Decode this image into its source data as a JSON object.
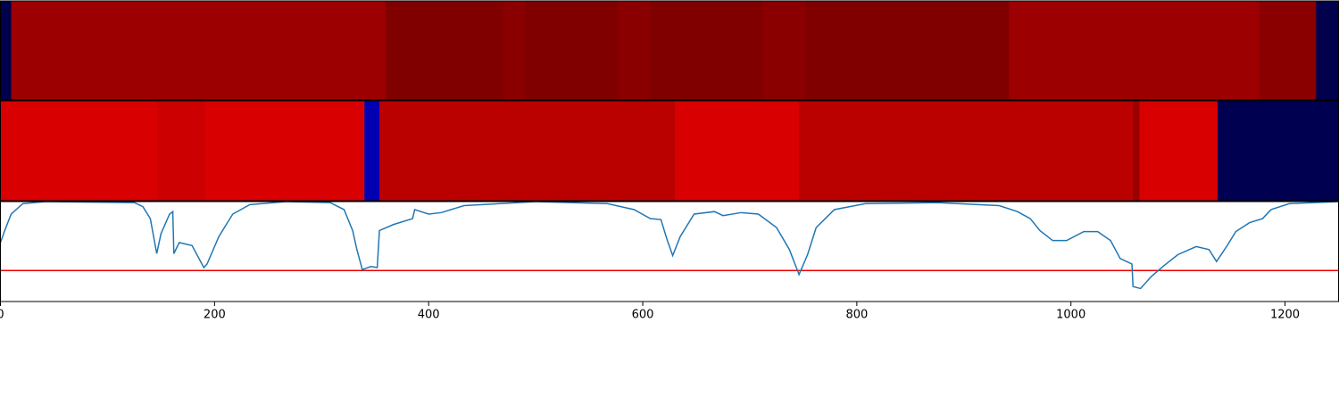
{
  "chart_data": [
    {
      "type": "heatmap",
      "xlim": [
        0,
        1250
      ],
      "edges": [
        0,
        10,
        360,
        470,
        490,
        577,
        607,
        712,
        752,
        942,
        1176,
        1229,
        1250
      ],
      "colors": [
        "#00004c",
        "#9c0000",
        "#800000",
        "#8a0000",
        "#800000",
        "#8a0000",
        "#800000",
        "#8a0000",
        "#800000",
        "#9c0000",
        "#8a0000",
        "#00004c"
      ]
    },
    {
      "type": "heatmap",
      "xlim": [
        0,
        1250
      ],
      "edges": [
        0,
        147,
        191,
        340,
        354,
        630,
        746,
        1058,
        1064,
        1137,
        1250
      ],
      "colors": [
        "#d80000",
        "#cc0000",
        "#d80000",
        "#0000b0",
        "#bb0000",
        "#d80000",
        "#bb0000",
        "#990000",
        "#d80000",
        "#000050"
      ]
    },
    {
      "type": "line",
      "xlim": [
        0,
        1250
      ],
      "ylim": [
        0,
        1
      ],
      "xticks": [
        0,
        200,
        400,
        600,
        800,
        1000,
        1200
      ],
      "threshold": 0.31,
      "threshold_color": "#ee0000",
      "color": "#1f77b4",
      "x": [
        0,
        4,
        10,
        21,
        42,
        125,
        133,
        140,
        146,
        150,
        158,
        161,
        162,
        167,
        179,
        190,
        193,
        204,
        217,
        233,
        267,
        308,
        321,
        329,
        333,
        338,
        346,
        352,
        354,
        367,
        385,
        387,
        400,
        412,
        433,
        500,
        567,
        592,
        607,
        617,
        623,
        628,
        635,
        648,
        667,
        675,
        692,
        708,
        725,
        737,
        746,
        754,
        762,
        779,
        808,
        875,
        933,
        950,
        962,
        971,
        983,
        996,
        1012,
        1025,
        1037,
        1046,
        1057,
        1058,
        1065,
        1075,
        1087,
        1100,
        1117,
        1129,
        1136,
        1146,
        1154,
        1167,
        1179,
        1187,
        1204,
        1250
      ],
      "values": [
        0.59,
        0.71,
        0.875,
        0.98,
        1.0,
        0.99,
        0.95,
        0.83,
        0.48,
        0.68,
        0.875,
        0.9,
        0.48,
        0.59,
        0.56,
        0.34,
        0.375,
        0.65,
        0.875,
        0.97,
        1.0,
        0.99,
        0.92,
        0.71,
        0.52,
        0.32,
        0.35,
        0.34,
        0.71,
        0.77,
        0.83,
        0.92,
        0.875,
        0.89,
        0.96,
        1.0,
        0.98,
        0.92,
        0.83,
        0.82,
        0.61,
        0.46,
        0.65,
        0.875,
        0.9,
        0.86,
        0.89,
        0.875,
        0.74,
        0.52,
        0.27,
        0.47,
        0.74,
        0.92,
        0.98,
        0.99,
        0.96,
        0.9,
        0.83,
        0.71,
        0.61,
        0.61,
        0.7,
        0.7,
        0.61,
        0.43,
        0.375,
        0.15,
        0.13,
        0.25,
        0.36,
        0.47,
        0.55,
        0.52,
        0.4,
        0.56,
        0.7,
        0.79,
        0.83,
        0.92,
        0.98,
        1.0
      ]
    }
  ]
}
